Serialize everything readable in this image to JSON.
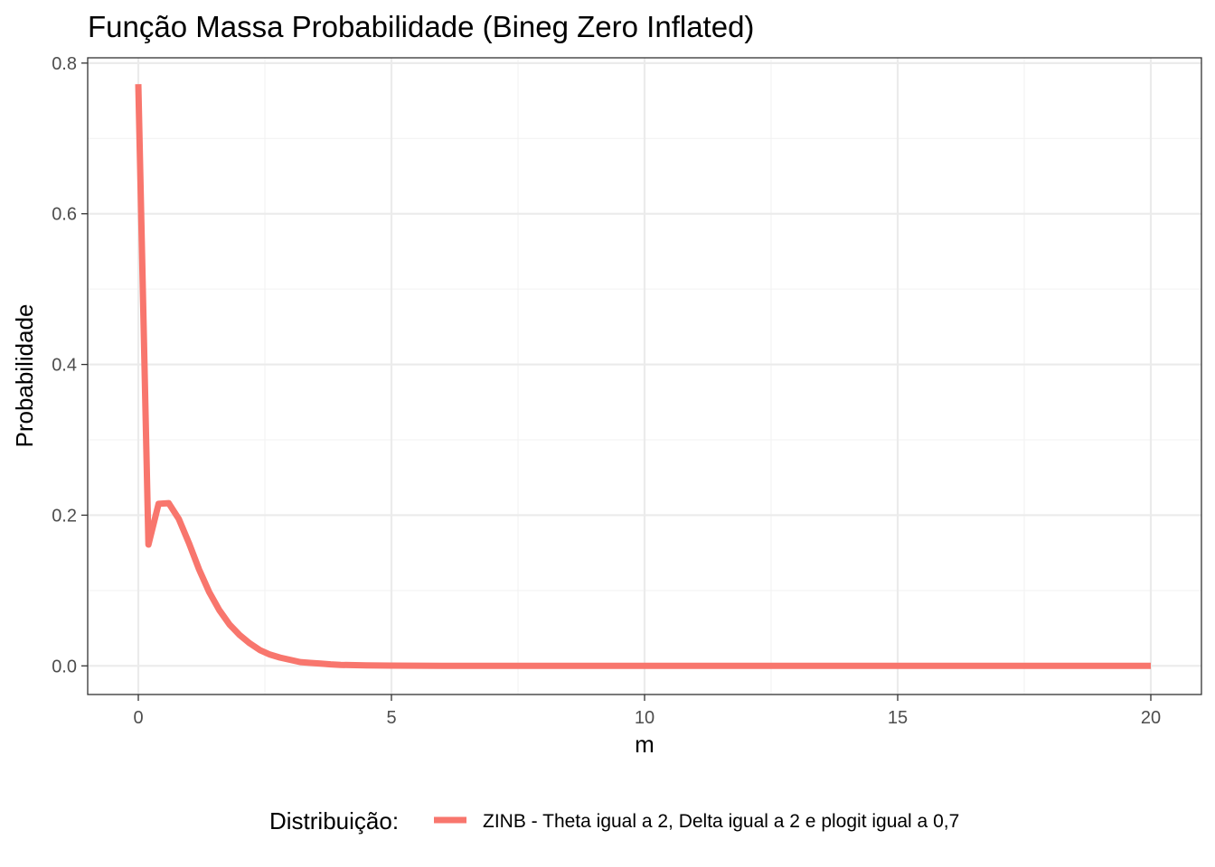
{
  "chart_data": {
    "type": "line",
    "title": "Função Massa Probabilidade (Bineg Zero Inflated)",
    "xlabel": "m",
    "ylabel": "Probabilidade",
    "xlim": [
      -1,
      21
    ],
    "ylim": [
      -0.038,
      0.807
    ],
    "x_ticks": [
      0,
      5,
      10,
      15,
      20
    ],
    "x_tick_labels": [
      "0",
      "5",
      "10",
      "15",
      "20"
    ],
    "x_minor_ticks": [
      2.5,
      7.5,
      12.5,
      17.5
    ],
    "y_ticks": [
      0.0,
      0.2,
      0.4,
      0.6,
      0.8
    ],
    "y_tick_labels": [
      "0.0",
      "0.2",
      "0.4",
      "0.6",
      "0.8"
    ],
    "y_minor_ticks": [
      0.1,
      0.3,
      0.5,
      0.7
    ],
    "grid": true,
    "legend": {
      "position": "bottom",
      "title": "Distribuição:",
      "entries": [
        "ZINB - Theta igual a 2, Delta igual a 2 e plogit igual a 0,7"
      ]
    },
    "series": [
      {
        "name": "ZINB - Theta igual a 2, Delta igual a 2 e plogit igual a 0,7",
        "color": "#F8766D",
        "x": [
          0,
          0.2,
          0.4,
          0.6,
          0.8,
          1.0,
          1.2,
          1.4,
          1.6,
          1.8,
          2.0,
          2.2,
          2.4,
          2.6,
          2.8,
          3.0,
          3.2,
          3.4,
          3.6,
          3.8,
          4.0,
          4.5,
          5.0,
          6.0,
          8.0,
          10.0,
          12.0,
          14.0,
          16.0,
          18.0,
          20.0
        ],
        "y": [
          0.772,
          0.161,
          0.215,
          0.216,
          0.195,
          0.163,
          0.128,
          0.098,
          0.074,
          0.055,
          0.041,
          0.03,
          0.021,
          0.015,
          0.011,
          0.008,
          0.005,
          0.004,
          0.003,
          0.002,
          0.0013,
          0.0006,
          0.0003,
          0.0001,
          0.0,
          0.0,
          0.0,
          0.0,
          0.0,
          0.0,
          0.0
        ]
      }
    ]
  }
}
